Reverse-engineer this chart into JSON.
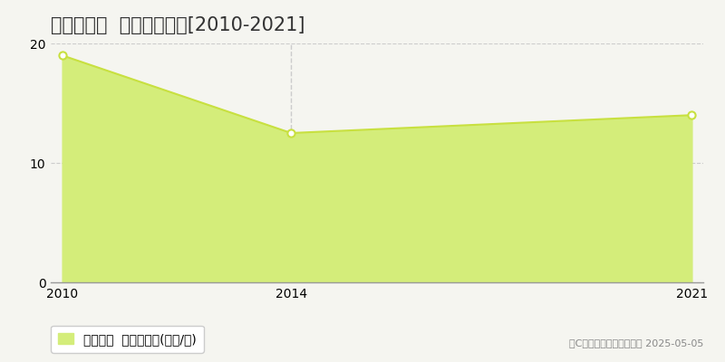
{
  "title": "一関市橋渡  土地価格推移[2010-2021]",
  "years": [
    2010,
    2014,
    2021
  ],
  "values": [
    19.0,
    12.5,
    14.0
  ],
  "vline_x": 2014,
  "fill_color": "#d4ed7a",
  "line_color": "#c8e040",
  "marker_color": "#ffffff",
  "marker_edge_color": "#c8e040",
  "background_color": "#f5f5f0",
  "grid_color": "#cccccc",
  "xlim": [
    2010,
    2021
  ],
  "ylim": [
    0,
    20
  ],
  "yticks": [
    0,
    10,
    20
  ],
  "xticks": [
    2010,
    2014,
    2021
  ],
  "legend_label": "土地価格  平均坪単価(万円/坪)",
  "copyright_text": "（C）土地価格ドットコム 2025-05-05",
  "title_fontsize": 15,
  "tick_fontsize": 10,
  "legend_fontsize": 10,
  "copyright_fontsize": 8
}
